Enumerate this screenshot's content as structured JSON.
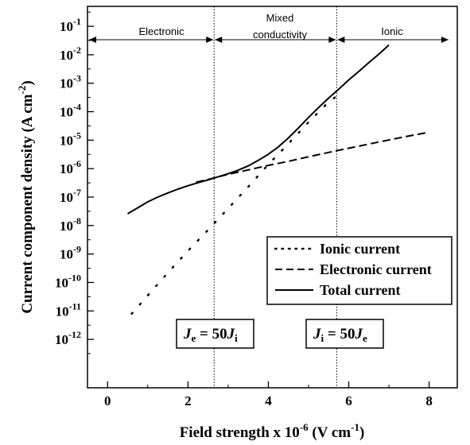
{
  "chart_data": {
    "type": "line",
    "xlabel_base": "Field strength x 10",
    "xlabel_exp": "-6",
    "xlabel_unit_pre": " (V cm",
    "xlabel_unit_exp": "-1",
    "xlabel_unit_post": ")",
    "ylabel_base": "Current component density (A cm",
    "ylabel_exp": "-2",
    "ylabel_post": ")",
    "xlim": [
      -0.5,
      8.7
    ],
    "ylim_log10": [
      -13.7,
      -0.3
    ],
    "y_scale": "log",
    "x_ticks": [
      0,
      2,
      4,
      6,
      8
    ],
    "x_tick_labels": [
      "0",
      "2",
      "4",
      "6",
      "8"
    ],
    "y_ticks": [
      {
        "exp": -1,
        "label": "10",
        "sup": "-1"
      },
      {
        "exp": -2,
        "label": "10",
        "sup": "-2"
      },
      {
        "exp": -3,
        "label": "10",
        "sup": "-3"
      },
      {
        "exp": -4,
        "label": "10",
        "sup": "-4"
      },
      {
        "exp": -5,
        "label": "10",
        "sup": "-5"
      },
      {
        "exp": -6,
        "label": "10",
        "sup": "-6"
      },
      {
        "exp": -7,
        "label": "10",
        "sup": "-7"
      },
      {
        "exp": -8,
        "label": "10",
        "sup": "-8"
      },
      {
        "exp": -9,
        "label": "10",
        "sup": "-9"
      },
      {
        "exp": -10,
        "label": "10",
        "sup": "-10"
      },
      {
        "exp": -11,
        "label": "10",
        "sup": "-11"
      },
      {
        "exp": -12,
        "label": "10",
        "sup": "-12"
      }
    ],
    "series": [
      {
        "name": "Ionic current",
        "style": "dotted",
        "x": [
          0.6,
          1.0,
          1.5,
          2.0,
          2.5,
          3.0,
          3.5,
          4.0,
          4.5,
          5.0,
          5.5,
          5.7
        ],
        "y": [
          8e-12,
          3.5e-11,
          2.2e-10,
          1.3e-09,
          7e-09,
          4e-08,
          2.3e-07,
          1.4e-06,
          7.5e-06,
          4.3e-05,
          0.00022,
          0.00035
        ]
      },
      {
        "name": "Electronic current",
        "style": "dashed",
        "x": [
          2.2,
          2.6,
          3.0,
          3.5,
          4.0,
          4.5,
          5.0,
          5.5,
          6.0,
          6.5,
          7.0,
          7.5,
          8.0
        ],
        "y": [
          3.3e-07,
          4.5e-07,
          6.3e-07,
          9e-07,
          1.3e-06,
          1.8e-06,
          2.6e-06,
          3.7e-06,
          5.2e-06,
          7.3e-06,
          1.02e-05,
          1.4e-05,
          1.9e-05
        ]
      },
      {
        "name": "Total current",
        "style": "solid",
        "x": [
          0.5,
          0.75,
          1.0,
          1.25,
          1.5,
          1.75,
          2.0,
          2.25,
          2.5,
          2.75,
          3.0,
          3.25,
          3.5,
          3.75,
          4.0,
          4.25,
          4.5,
          4.75,
          5.0,
          5.25,
          5.5,
          5.75,
          6.0,
          6.25,
          6.5,
          6.75,
          7.0
        ],
        "y": [
          2.6e-08,
          4.2e-08,
          6.8e-08,
          1e-07,
          1.4e-07,
          1.9e-07,
          2.5e-07,
          3.2e-07,
          4e-07,
          5.2e-07,
          6.6e-07,
          8.8e-07,
          1.25e-06,
          1.95e-06,
          3.2e-06,
          5.8e-06,
          1.2e-05,
          2.7e-05,
          6.3e-05,
          0.00014,
          0.0003,
          0.00062,
          0.0013,
          0.0026,
          0.0053,
          0.0105,
          0.022
        ]
      }
    ],
    "legend": {
      "position": "right",
      "entries": [
        "Ionic current",
        "Electronic current",
        "Total current"
      ]
    },
    "region_boundaries": [
      2.65,
      5.7
    ],
    "regions": [
      {
        "label": "Electronic",
        "x_from": -0.5,
        "x_to": 2.65
      },
      {
        "label_line1": "Mixed",
        "label_line2": "conductivity",
        "x_from": 2.65,
        "x_to": 5.7
      },
      {
        "label": "Ionic",
        "x_from": 5.7,
        "x_to": 8.5
      }
    ],
    "annotations": [
      {
        "a": "J",
        "a_sub": "e",
        "mid": " = 50",
        "b": "J",
        "b_sub": "i"
      },
      {
        "a": "J",
        "a_sub": "i",
        "mid": " = 50",
        "b": "J",
        "b_sub": "e"
      }
    ]
  }
}
